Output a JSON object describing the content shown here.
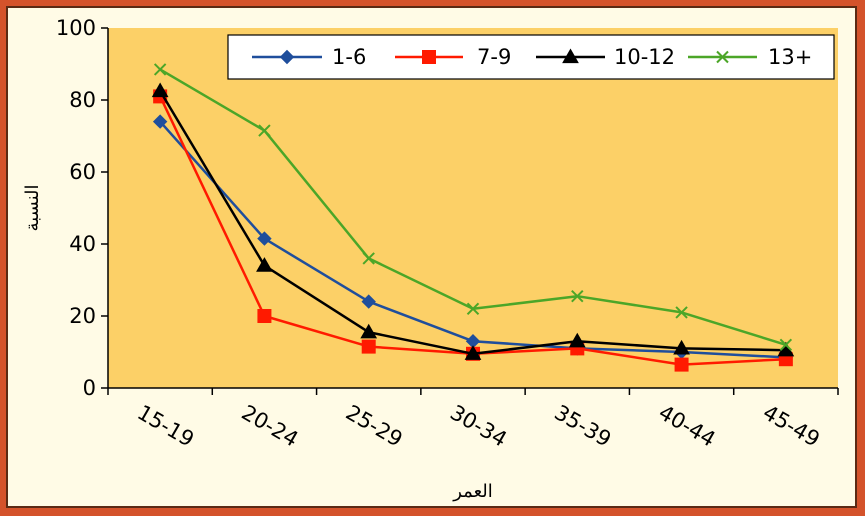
{
  "chart_data": {
    "type": "line",
    "xlabel": "العمر",
    "ylabel": "النسبة",
    "categories": [
      "15-19",
      "20-24",
      "25-29",
      "30-34",
      "35-39",
      "40-44",
      "45-49"
    ],
    "ylim": [
      0,
      100
    ],
    "yticks": [
      0,
      20,
      40,
      60,
      80,
      100
    ],
    "grid": false,
    "legend_position": "top-right",
    "plot_background": "#fcd067",
    "series": [
      {
        "name": "1-6",
        "color": "#1f4e9c",
        "marker": "diamond",
        "values": [
          74,
          41.5,
          24,
          13,
          11,
          10,
          8.5
        ]
      },
      {
        "name": "7-9",
        "color": "#ff1a00",
        "marker": "square",
        "values": [
          81,
          20,
          11.5,
          9.5,
          11,
          6.5,
          8
        ]
      },
      {
        "name": "10-12",
        "color": "#000000",
        "marker": "triangle",
        "values": [
          82.5,
          34,
          15.5,
          9.5,
          13,
          11,
          10.5
        ]
      },
      {
        "name": "13+",
        "color": "#4ca628",
        "marker": "x",
        "values": [
          88.5,
          71.5,
          36,
          22,
          25.5,
          21,
          12
        ]
      }
    ]
  }
}
